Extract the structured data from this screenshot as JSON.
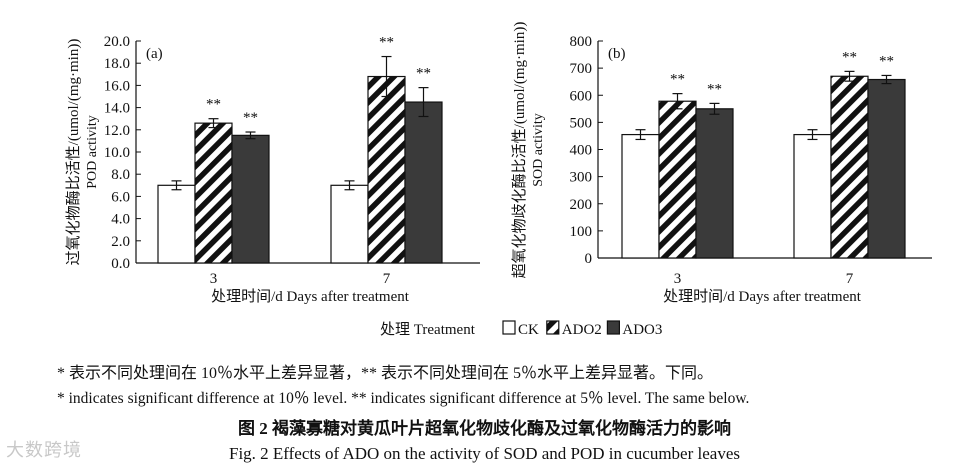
{
  "chart_data": [
    {
      "type": "bar",
      "panel_label": "(a)",
      "ylabel_cn": "过氧化物酶比活性/(umol/(mg·min))",
      "ylabel_en": "POD activity",
      "xlabel": "处理时间/d Days after treatment",
      "categories": [
        "3",
        "7"
      ],
      "ylim": [
        0,
        20
      ],
      "yticks": [
        "0.0",
        "2.0",
        "4.0",
        "6.0",
        "8.0",
        "10.0",
        "12.0",
        "14.0",
        "16.0",
        "18.0",
        "20.0"
      ],
      "ytick_values": [
        0,
        2,
        4,
        6,
        8,
        10,
        12,
        14,
        16,
        18,
        20
      ],
      "series": [
        {
          "name": "CK",
          "values": [
            7.0,
            7.0
          ],
          "errors": [
            0.4,
            0.4
          ],
          "sig": [
            "",
            ""
          ]
        },
        {
          "name": "ADO2",
          "values": [
            12.6,
            16.8
          ],
          "errors": [
            0.4,
            1.8
          ],
          "sig": [
            "**",
            "**"
          ]
        },
        {
          "name": "ADO3",
          "values": [
            11.5,
            14.5
          ],
          "errors": [
            0.3,
            1.3
          ],
          "sig": [
            "**",
            "**"
          ]
        }
      ]
    },
    {
      "type": "bar",
      "panel_label": "(b)",
      "ylabel_cn": "超氧化物歧化酶比活性/(umol/(mg·min))",
      "ylabel_en": "SOD activity",
      "xlabel": "处理时间/d Days after treatment",
      "categories": [
        "3",
        "7"
      ],
      "ylim": [
        0,
        800
      ],
      "yticks": [
        "0",
        "100",
        "200",
        "300",
        "400",
        "500",
        "600",
        "700",
        "800"
      ],
      "ytick_values": [
        0,
        100,
        200,
        300,
        400,
        500,
        600,
        700,
        800
      ],
      "series": [
        {
          "name": "CK",
          "values": [
            455,
            455
          ],
          "errors": [
            18,
            18
          ],
          "sig": [
            "",
            ""
          ]
        },
        {
          "name": "ADO2",
          "values": [
            578,
            670
          ],
          "errors": [
            28,
            18
          ],
          "sig": [
            "**",
            "**"
          ]
        },
        {
          "name": "ADO3",
          "values": [
            550,
            658
          ],
          "errors": [
            20,
            15
          ],
          "sig": [
            "**",
            "**"
          ]
        }
      ]
    }
  ],
  "legend": {
    "title": "处理 Treatment",
    "items": [
      {
        "label": "CK",
        "style": "white"
      },
      {
        "label": "ADO2",
        "style": "hatched"
      },
      {
        "label": "ADO3",
        "style": "dark"
      }
    ]
  },
  "notes": {
    "cn": "* 表示不同处理间在 10％水平上差异显著，** 表示不同处理间在 5％水平上差异显著。下同。",
    "en": "* indicates significant difference at 10％ level. ** indicates significant difference at 5％ level. The same below."
  },
  "caption": {
    "cn": "图 2   褐藻寡糖对黄瓜叶片超氧化物歧化酶及过氧化物酶活力的影响",
    "en": "Fig. 2   Effects of ADO on the activity of SOD and POD in cucumber leaves"
  },
  "watermark": "大数跨境",
  "colors": {
    "dark": "#3a3a3a",
    "line": "#111111",
    "bg": "#ffffff"
  }
}
